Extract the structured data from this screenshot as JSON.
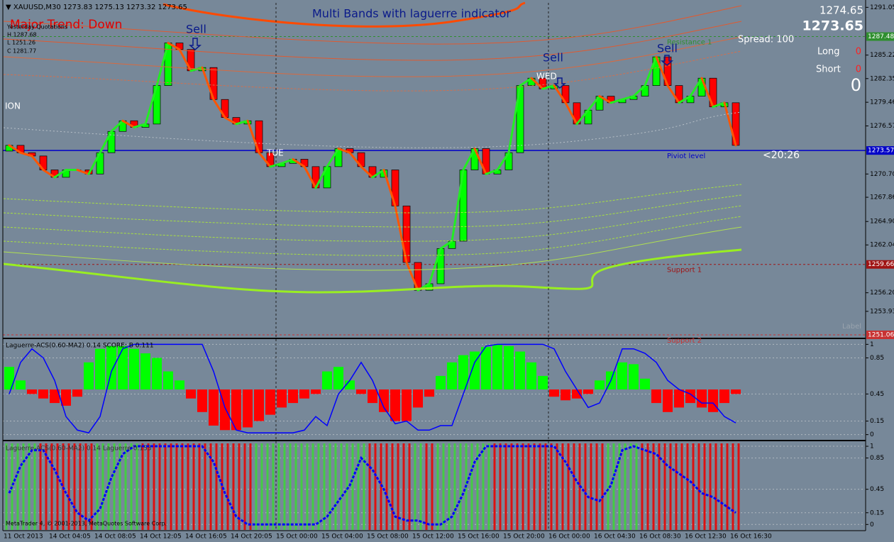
{
  "header": {
    "symbol_line": "▼ XAUUSD,M30  1273.83 1275.13 1273.32 1273.65",
    "trend": "Major Trend: Down",
    "yesterday": "Yesterday Quotations",
    "high": "H 1287.68",
    "low": "L 1251.26",
    "close": "C 1281.77",
    "title": "Multi Bands with laguerre indicator",
    "bid": 1274.65,
    "ask": 1273.65,
    "spread": "Spread: 100",
    "long_label": "Long",
    "long_value": 0,
    "short_label": "Short",
    "short_value": 0,
    "total": 0,
    "timer": "<20:26",
    "corner_label": "Label",
    "copyright": "MetaTrader 4, © 2001-2013, MetaQuotes Software Corp.",
    "annotations": [
      "Sell",
      "Sell",
      "Sell",
      "ION",
      "TUE",
      "WED"
    ]
  },
  "chart_data": [
    {
      "type": "candlestick",
      "categories": [
        "11 Oct 2013",
        null,
        null,
        null,
        "14 Oct 04:05",
        null,
        null,
        null,
        "14 Oct 08:05",
        null,
        null,
        null,
        "14 Oct 12:05",
        null,
        null,
        null,
        "14 Oct 16:05",
        null,
        null,
        null,
        "14 Oct 20:05",
        null,
        null,
        null,
        "15 Oct 00:00",
        null,
        null,
        null,
        "15 Oct 04:00",
        null,
        null,
        null,
        "15 Oct 08:00",
        null,
        null,
        null,
        "15 Oct 12:00",
        null,
        null,
        null,
        "15 Oct 16:00",
        null,
        null,
        null,
        "15 Oct 20:00",
        null,
        null,
        null,
        "16 Oct 00:00",
        null,
        null,
        null,
        "16 Oct 04:30",
        null,
        null,
        null,
        "16 Oct 08:30",
        null,
        null,
        null,
        "16 Oct 12:30",
        null,
        null,
        null,
        "16 Oct 16:30"
      ],
      "open": [
        1273.5,
        1274.2,
        1273.3,
        1272.9,
        1271.2,
        1270.3,
        1271.2,
        1271.2,
        1270.7,
        1273.3,
        1275.9,
        1277.2,
        1276.4,
        1276.8,
        1281.5,
        1286.7,
        1285.9,
        1283.3,
        1283.7,
        1279.8,
        1277.6,
        1276.8,
        1277.2,
        1273.3,
        1271.6,
        1272.0,
        1272.5,
        1271.6,
        1269.0,
        1271.6,
        1273.8,
        1273.3,
        1271.6,
        1270.3,
        1271.2,
        1266.8,
        1259.9,
        1256.5,
        1257.3,
        1261.6,
        1262.5,
        1271.2,
        1273.8,
        1270.7,
        1271.2,
        1273.3,
        1281.5,
        1282.4,
        1281.1,
        1281.5,
        1279.4,
        1276.8,
        1278.5,
        1280.2,
        1279.4,
        1279.8,
        1280.2,
        1281.5,
        1285.0,
        1281.5,
        1279.4,
        1280.2,
        1282.4,
        1278.9,
        1279.4
      ],
      "close": [
        1274.2,
        1273.3,
        1272.9,
        1271.2,
        1270.3,
        1271.2,
        1271.2,
        1270.7,
        1273.3,
        1275.9,
        1277.2,
        1276.4,
        1276.8,
        1281.5,
        1286.7,
        1285.9,
        1283.3,
        1283.7,
        1279.8,
        1277.6,
        1276.8,
        1277.2,
        1273.3,
        1271.6,
        1272.0,
        1272.5,
        1271.6,
        1269.0,
        1271.6,
        1273.8,
        1273.3,
        1271.6,
        1270.3,
        1271.2,
        1266.8,
        1259.9,
        1256.5,
        1257.3,
        1261.6,
        1262.5,
        1271.2,
        1273.8,
        1270.7,
        1271.2,
        1273.3,
        1281.5,
        1282.4,
        1281.1,
        1281.5,
        1279.4,
        1276.8,
        1278.5,
        1280.2,
        1279.4,
        1279.8,
        1280.2,
        1281.5,
        1285.0,
        1281.5,
        1279.4,
        1280.2,
        1282.4,
        1278.9,
        1279.4,
        1274.2
      ],
      "up_color": "#00ff00",
      "down_color": "#ff0000",
      "rise_line_color": "#22ee22",
      "fall_line_color": "#ff5500",
      "ylim": [
        1250.8,
        1291.6
      ],
      "yticks": [
        1291.05,
        1285.22,
        1282.35,
        1279.46,
        1276.57,
        {
          "value": 1270.7,
          "label": "1270.70"
        },
        1267.86,
        {
          "value": 1264.9,
          "label": "1264.90"
        },
        1262.04,
        {
          "value": 1256.2,
          "label": "1256.20"
        },
        1253.93
      ],
      "levels": [
        {
          "name": "Resistance 1",
          "value": 1287.48,
          "color": "#2f8f2f"
        },
        {
          "name": "Piviot level",
          "value": 1273.57,
          "color": "#0000c8"
        },
        {
          "name": "Support 1",
          "value": 1259.66,
          "color": "#a01414"
        },
        {
          "name": "Support 2",
          "value": 1251.06,
          "color": "#c83232"
        }
      ]
    },
    {
      "type": "bar",
      "label": "Laguerre-ACS(0.60-MA2) 0.14  SCORE: B 0.111",
      "values": [
        0.75,
        0.6,
        0.45,
        0.4,
        0.35,
        0.32,
        0.42,
        0.8,
        0.95,
        0.98,
        0.98,
        0.95,
        0.9,
        0.85,
        0.7,
        0.6,
        0.4,
        0.25,
        0.1,
        0.05,
        0.05,
        0.08,
        0.15,
        0.22,
        0.3,
        0.35,
        0.4,
        0.45,
        0.7,
        0.75,
        0.6,
        0.45,
        0.35,
        0.25,
        0.15,
        0.15,
        0.3,
        0.42,
        0.65,
        0.8,
        0.88,
        0.92,
        0.97,
        1.0,
        0.98,
        0.92,
        0.8,
        0.65,
        0.42,
        0.38,
        0.4,
        0.45,
        0.6,
        0.7,
        0.8,
        0.78,
        0.62,
        0.35,
        0.25,
        0.3,
        0.35,
        0.3,
        0.25,
        0.35,
        0.45
      ],
      "line_values": [
        0.45,
        0.8,
        0.95,
        0.85,
        0.6,
        0.2,
        0.05,
        0.02,
        0.2,
        0.7,
        0.95,
        1,
        1,
        1,
        1,
        1,
        1,
        1,
        0.7,
        0.3,
        0.05,
        0.02,
        0.02,
        0.02,
        0.02,
        0.02,
        0.05,
        0.2,
        0.1,
        0.45,
        0.6,
        0.8,
        0.6,
        0.3,
        0.12,
        0.15,
        0.05,
        0.05,
        0.1,
        0.1,
        0.45,
        0.8,
        0.98,
        1,
        1,
        1,
        1,
        1,
        0.95,
        0.7,
        0.5,
        0.3,
        0.35,
        0.6,
        0.95,
        0.95,
        0.9,
        0.8,
        0.6,
        0.5,
        0.45,
        0.35,
        0.35,
        0.2,
        0.13
      ],
      "up_color": "#00ff00",
      "down_color": "#ff0000",
      "line_color": "#0000ff",
      "ylim": [
        -0.05,
        1.05
      ],
      "yticks": [
        1,
        0.85,
        0.45,
        0.15,
        0
      ],
      "grid": true
    },
    {
      "type": "state_bars",
      "label": "Laguerre-ACS(0.60-MA2) 0.14  Laguerre 0.153",
      "values": [
        0.4,
        0.75,
        0.95,
        0.95,
        0.7,
        0.4,
        0.15,
        0.05,
        0.2,
        0.6,
        0.9,
        1,
        1,
        1,
        1,
        1,
        1,
        1,
        0.8,
        0.4,
        0.1,
        0,
        0,
        0,
        0,
        0,
        0,
        0,
        0.1,
        0.3,
        0.5,
        0.85,
        0.7,
        0.45,
        0.1,
        0.05,
        0.05,
        0,
        0,
        0.1,
        0.4,
        0.8,
        1,
        1,
        1,
        1,
        1,
        1,
        1,
        0.8,
        0.55,
        0.35,
        0.3,
        0.5,
        0.95,
        1,
        0.95,
        0.9,
        0.75,
        0.65,
        0.55,
        0.4,
        0.35,
        0.25,
        0.15
      ],
      "up_color": "#44cc44",
      "down_color": "#dd1111",
      "line_color": "#0000ff",
      "ylim": [
        -0.07,
        1.055
      ],
      "yticks": [
        1,
        0.85,
        0.45,
        0.15,
        0
      ],
      "grid": true
    }
  ]
}
